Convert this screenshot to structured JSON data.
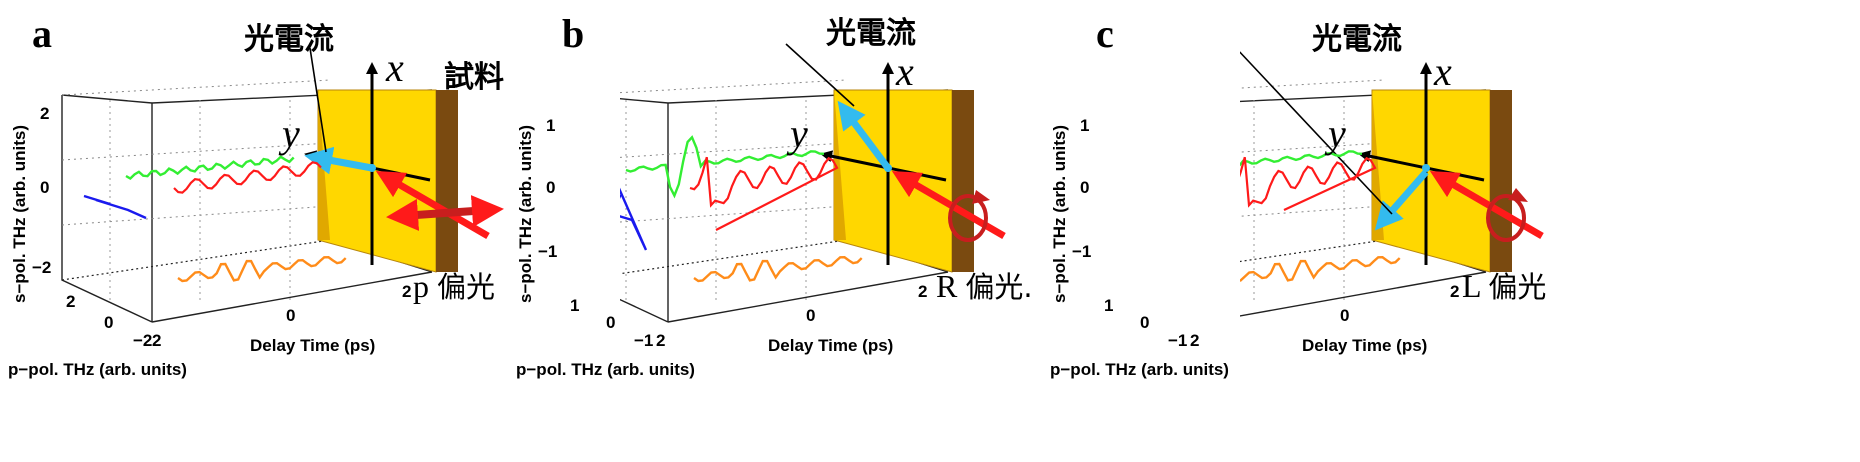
{
  "chart_data": [
    {
      "type": "scatter",
      "panel_label": "a",
      "photocurrent_label": "光電流",
      "sample_label": "試料",
      "x_axis_var": "x",
      "y_axis_var": "y",
      "polarization": {
        "symbol": "p",
        "text": "偏光"
      },
      "xlabel": "Delay Time (ps)",
      "ylabel": "s−pol. THz (arb. units)",
      "zlabel": "p−pol. THz (arb. units)",
      "ticks": {
        "s": [
          "2",
          "0",
          "−2"
        ],
        "p": [
          "2",
          "0",
          "−2"
        ],
        "delay": [
          "0",
          "2"
        ]
      },
      "colors": {
        "trace_3d": "#ff1a1a",
        "proj_delay_s": "#33ee33",
        "proj_delay_p": "#ff8c1a",
        "proj_sp": "#1a1aee",
        "photocurrent": "#33bbee",
        "excitation": "#ff1a1a",
        "sample": "#ffd700"
      }
    },
    {
      "type": "scatter",
      "panel_label": "b",
      "photocurrent_label": "光電流",
      "x_axis_var": "x",
      "y_axis_var": "y",
      "polarization": {
        "symbol": "R",
        "text": "偏光."
      },
      "xlabel": "Delay Time (ps)",
      "ylabel": "s−pol. THz (arb. units)",
      "zlabel": "p−pol. THz (arb. units)",
      "ticks": {
        "s": [
          "1",
          "0",
          "−1"
        ],
        "p": [
          "1",
          "0",
          "−1"
        ],
        "delay": [
          "0",
          "2"
        ]
      },
      "colors": {
        "trace_3d": "#ff1a1a",
        "proj_delay_s": "#33ee33",
        "proj_delay_p": "#ff8c1a",
        "proj_sp": "#1a1aee",
        "photocurrent": "#33bbee",
        "excitation": "#ff1a1a",
        "sample": "#ffd700"
      }
    },
    {
      "type": "scatter",
      "panel_label": "c",
      "photocurrent_label": "光電流",
      "x_axis_var": "x",
      "y_axis_var": "y",
      "polarization": {
        "symbol": "L",
        "text": "偏光"
      },
      "xlabel": "Delay Time (ps)",
      "ylabel": "s−pol. THz (arb. units)",
      "zlabel": "p−pol. THz (arb. units)",
      "ticks": {
        "s": [
          "1",
          "0",
          "−1"
        ],
        "p": [
          "1",
          "0",
          "−1"
        ],
        "delay": [
          "0",
          "2"
        ]
      },
      "colors": {
        "trace_3d": "#ff1a1a",
        "proj_delay_s": "#33ee33",
        "proj_delay_p": "#ff8c1a",
        "proj_sp": "#1a1aee",
        "photocurrent": "#33bbee",
        "excitation": "#ff1a1a",
        "sample": "#ffd700"
      }
    }
  ]
}
